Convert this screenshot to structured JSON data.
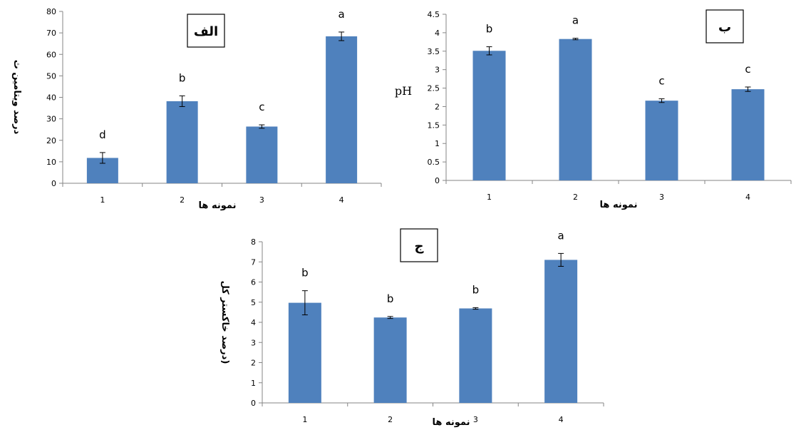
{
  "chart_data": [
    {
      "type": "bar",
      "panel_label": "الف",
      "ylabel": "درصد ویتامین ث",
      "xlabel": "نمونه ها",
      "categories": [
        "1",
        "2",
        "3",
        "4"
      ],
      "values": [
        11.8,
        38.2,
        26.4,
        68.4
      ],
      "errors": [
        2.5,
        2.5,
        0.8,
        2.0
      ],
      "letters": [
        "d",
        "b",
        "c",
        "a"
      ],
      "ylim": [
        0,
        80
      ],
      "yticks": [
        "0",
        "10",
        "20",
        "30",
        "40",
        "50",
        "60",
        "70",
        "80"
      ],
      "bar_color": "#4f81bd",
      "grid": false
    },
    {
      "type": "bar",
      "panel_label": "ب",
      "ylabel": "pH",
      "xlabel": "نمونه ها",
      "categories": [
        "1",
        "2",
        "3",
        "4"
      ],
      "values": [
        3.51,
        3.83,
        2.16,
        2.47
      ],
      "errors": [
        0.11,
        0.02,
        0.05,
        0.06
      ],
      "letters": [
        "b",
        "a",
        "c",
        "c"
      ],
      "ylim": [
        0,
        4.5
      ],
      "yticks": [
        "0",
        "0.5",
        "1",
        "1.5",
        "2",
        "2.5",
        "3",
        "3.5",
        "4",
        "4.5"
      ],
      "bar_color": "#4f81bd",
      "grid": false
    },
    {
      "type": "bar",
      "panel_label": "ج",
      "ylabel": "درصد خاکستر کل)",
      "xlabel": "نمونه ها",
      "categories": [
        "1",
        "2",
        "3",
        "4"
      ],
      "values": [
        4.97,
        4.24,
        4.69,
        7.1
      ],
      "errors": [
        0.6,
        0.05,
        0.04,
        0.32
      ],
      "letters": [
        "b",
        "b",
        "b",
        "a"
      ],
      "ylim": [
        0,
        8
      ],
      "yticks": [
        "0",
        "1",
        "2",
        "3",
        "4",
        "5",
        "6",
        "7",
        "8"
      ],
      "bar_color": "#4f81bd",
      "grid": false
    }
  ]
}
